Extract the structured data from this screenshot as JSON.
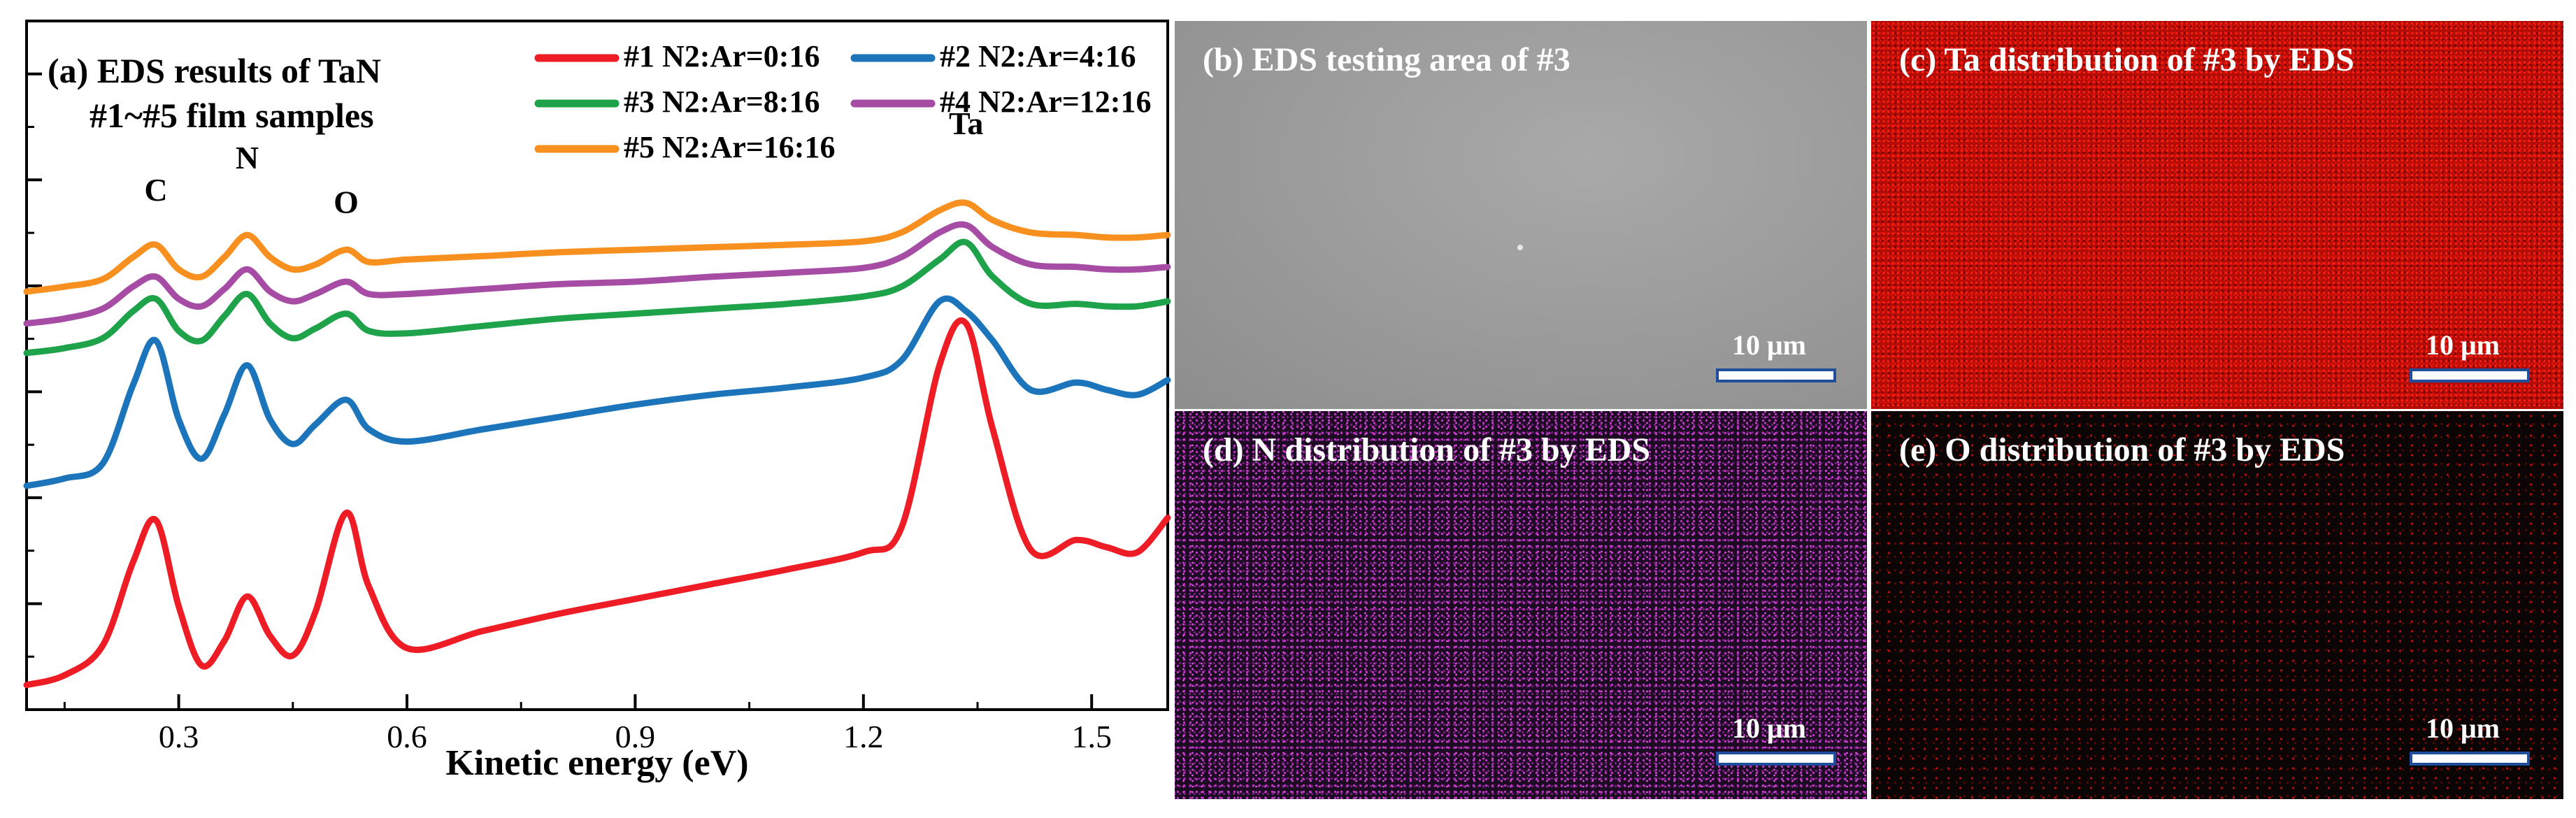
{
  "chart_data": {
    "type": "line",
    "title": "(a) EDS results of TaN",
    "subtitle": "#1~#5 film samples",
    "xlabel": "Kinetic energy (eV)",
    "ylabel": "",
    "xlim": [
      0.1,
      1.6
    ],
    "x_ticks": [
      "0.3",
      "0.6",
      "0.9",
      "1.2",
      "1.5"
    ],
    "x_tick_values": [
      0.3,
      0.6,
      0.9,
      1.2,
      1.5
    ],
    "y_ticks_labeled": false,
    "legend_position": "top",
    "grid": false,
    "peak_labels": [
      {
        "text": "C",
        "x": 0.27
      },
      {
        "text": "N",
        "x": 0.39
      },
      {
        "text": "O",
        "x": 0.52
      },
      {
        "text": "Ta",
        "x": 1.335
      }
    ],
    "x": [
      0.1,
      0.15,
      0.2,
      0.24,
      0.27,
      0.3,
      0.33,
      0.36,
      0.39,
      0.42,
      0.45,
      0.48,
      0.52,
      0.55,
      0.6,
      0.7,
      0.8,
      0.9,
      1.0,
      1.1,
      1.2,
      1.25,
      1.3,
      1.335,
      1.37,
      1.42,
      1.48,
      1.52,
      1.56,
      1.6
    ],
    "series": [
      {
        "name": "#1 N2:Ar=0:16",
        "color": "#ee1c25",
        "values": [
          0.0,
          0.2,
          0.8,
          2.5,
          3.35,
          1.6,
          0.4,
          0.9,
          1.8,
          1.0,
          0.6,
          1.5,
          3.5,
          2.0,
          0.75,
          1.1,
          1.45,
          1.75,
          2.05,
          2.35,
          2.7,
          3.2,
          6.5,
          7.35,
          5.2,
          2.75,
          2.95,
          2.8,
          2.7,
          3.4
        ]
      },
      {
        "name": "#2 N2:Ar=4:16",
        "color": "#1c74bb",
        "values": [
          4.05,
          4.2,
          4.5,
          6.1,
          7.0,
          5.4,
          4.6,
          5.5,
          6.5,
          5.4,
          4.9,
          5.3,
          5.8,
          5.2,
          4.95,
          5.2,
          5.45,
          5.7,
          5.9,
          6.05,
          6.25,
          6.6,
          7.8,
          7.6,
          7.0,
          6.0,
          6.15,
          6.0,
          5.9,
          6.2
        ]
      },
      {
        "name": "#3 N2:Ar=8:16",
        "color": "#1ea24a",
        "values": [
          6.75,
          6.85,
          7.05,
          7.6,
          7.85,
          7.2,
          7.0,
          7.5,
          7.95,
          7.35,
          7.05,
          7.25,
          7.55,
          7.2,
          7.15,
          7.3,
          7.45,
          7.55,
          7.65,
          7.75,
          7.9,
          8.1,
          8.65,
          9.0,
          8.3,
          7.75,
          7.75,
          7.7,
          7.7,
          7.8
        ]
      },
      {
        "name": "#4 N2:Ar=12:16",
        "color": "#a64ca5",
        "values": [
          7.35,
          7.45,
          7.65,
          8.1,
          8.3,
          7.85,
          7.7,
          8.05,
          8.45,
          8.0,
          7.8,
          7.95,
          8.2,
          7.95,
          7.95,
          8.05,
          8.15,
          8.2,
          8.3,
          8.38,
          8.48,
          8.7,
          9.2,
          9.35,
          8.9,
          8.55,
          8.5,
          8.45,
          8.45,
          8.5
        ]
      },
      {
        "name": "#5 N2:Ar=16:16",
        "color": "#f7901e",
        "values": [
          8.0,
          8.1,
          8.25,
          8.7,
          8.95,
          8.45,
          8.3,
          8.7,
          9.15,
          8.7,
          8.45,
          8.55,
          8.85,
          8.6,
          8.65,
          8.72,
          8.8,
          8.85,
          8.9,
          8.95,
          9.02,
          9.2,
          9.65,
          9.8,
          9.45,
          9.2,
          9.15,
          9.1,
          9.1,
          9.15
        ]
      }
    ]
  },
  "panels": {
    "b": {
      "title": "(b) EDS testing area of #3",
      "scale": "10 μm"
    },
    "c": {
      "title": "(c) Ta distribution of #3 by EDS",
      "scale": "10 μm"
    },
    "d": {
      "title": "(d) N distribution of #3 by EDS",
      "scale": "10 μm"
    },
    "e": {
      "title": "(e) O distribution of #3 by EDS",
      "scale": "10 μm"
    }
  },
  "colors": {
    "sem_gray": "#9a9a9a",
    "ta_map": "#b30d08",
    "n_map": "#c437c8",
    "o_map": "#c0120c",
    "scale_bar_border": "#1f4e9c"
  }
}
